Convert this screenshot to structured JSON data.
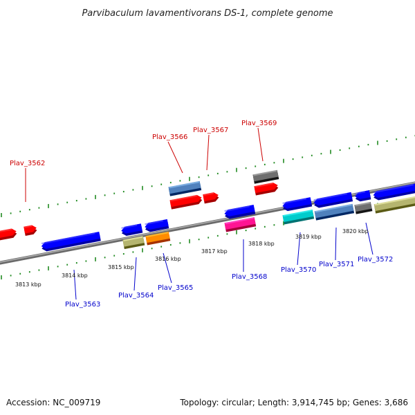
{
  "title": "Parvibaculum lavamentivorans DS-1, complete genome",
  "footer": {
    "accession": "Accession: NC_009719",
    "summary": "Topology: circular; Length: 3,914,745 bp; Genes: 3,686"
  },
  "colors": {
    "backbone": "#808080",
    "tick": "#228b22",
    "label_forward": "#cc0000",
    "label_reverse": "#0000cc",
    "gene_red": "#ff0000",
    "gene_blue": "#0000ff",
    "gene_steel": "#4f81bd",
    "gene_gray": "#6f6f6f",
    "gene_khaki": "#b5b56f",
    "gene_orange": "#ff8c00",
    "gene_magenta": "#ff1493",
    "gene_cyan": "#00cccc"
  },
  "kbp_labels": [
    "3813 kbp",
    "3814 kbp",
    "3815 kbp",
    "3816 kbp",
    "3817 kbp",
    "3818 kbp",
    "3819 kbp",
    "3820 kbp"
  ],
  "gene_labels_forward": [
    "Plav_3562",
    "Plav_3566",
    "Plav_3567",
    "Plav_3569"
  ],
  "gene_labels_reverse": [
    "Plav_3563",
    "Plav_3564",
    "Plav_3565",
    "Plav_3568",
    "Plav_3570",
    "Plav_3571",
    "Plav_3572"
  ]
}
